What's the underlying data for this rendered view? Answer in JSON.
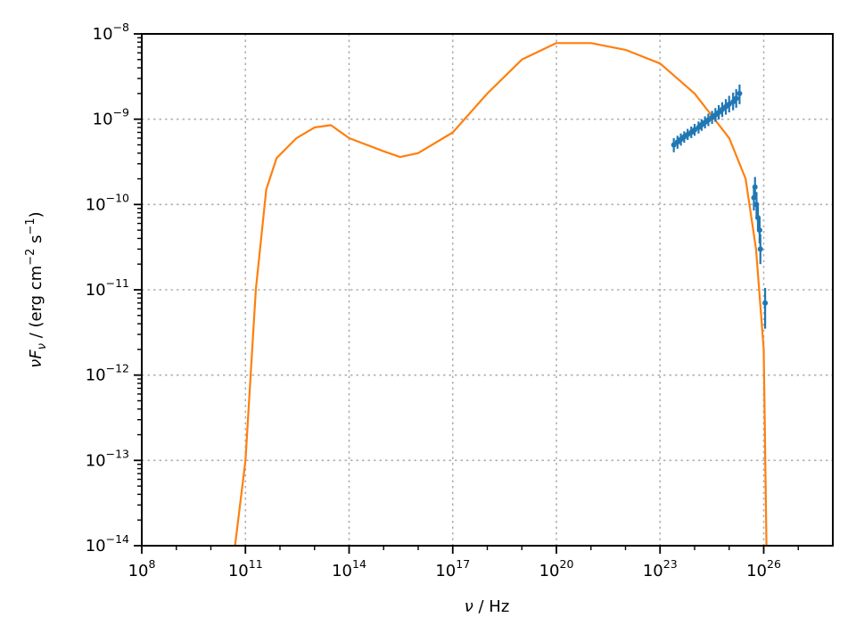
{
  "chart_data": {
    "type": "scatter",
    "title": "",
    "x_scale": "log",
    "y_scale": "log",
    "xlim": [
      100000000.0,
      1e+28
    ],
    "ylim": [
      1e-14,
      1e-08
    ],
    "grid": true,
    "x_ticks": [
      {
        "value": 100000000.0,
        "base": "10",
        "exp": "8"
      },
      {
        "value": 100000000000.0,
        "base": "10",
        "exp": "11"
      },
      {
        "value": 100000000000000.0,
        "base": "10",
        "exp": "14"
      },
      {
        "value": 1e+17,
        "base": "10",
        "exp": "17"
      },
      {
        "value": 1e+20,
        "base": "10",
        "exp": "20"
      },
      {
        "value": 1e+23,
        "base": "10",
        "exp": "23"
      },
      {
        "value": 1e+26,
        "base": "10",
        "exp": "26"
      }
    ],
    "y_ticks": [
      {
        "value": 1e-08,
        "base": "10",
        "exp": "−8"
      },
      {
        "value": 1e-09,
        "base": "10",
        "exp": "−9"
      },
      {
        "value": 1e-10,
        "base": "10",
        "exp": "−10"
      },
      {
        "value": 1e-11,
        "base": "10",
        "exp": "−11"
      },
      {
        "value": 1e-12,
        "base": "10",
        "exp": "−12"
      },
      {
        "value": 1e-13,
        "base": "10",
        "exp": "−13"
      },
      {
        "value": 1e-14,
        "base": "10",
        "exp": "−14"
      }
    ],
    "series": [
      {
        "type": "line",
        "color": "#ff7f0e",
        "points": [
          [
            50000000000.0,
            1e-14
          ],
          [
            100000000000.0,
            1e-13
          ],
          [
            200000000000.0,
            1e-11
          ],
          [
            400000000000.0,
            1.5e-10
          ],
          [
            800000000000.0,
            3.5e-10
          ],
          [
            3000000000000.0,
            6e-10
          ],
          [
            10000000000000.0,
            8e-10
          ],
          [
            30000000000000.0,
            8.5e-10
          ],
          [
            100000000000000.0,
            6e-10
          ],
          [
            1000000000000000.0,
            4.2e-10
          ],
          [
            3000000000000000.0,
            3.6e-10
          ],
          [
            1e+16,
            4e-10
          ],
          [
            1e+17,
            7e-10
          ],
          [
            1e+18,
            2e-09
          ],
          [
            1e+19,
            5e-09
          ],
          [
            1e+20,
            7.8e-09
          ],
          [
            1e+21,
            7.8e-09
          ],
          [
            1e+22,
            6.5e-09
          ],
          [
            1e+23,
            4.5e-09
          ],
          [
            1e+24,
            2e-09
          ],
          [
            1e+25,
            6e-10
          ],
          [
            3e+25,
            2e-10
          ],
          [
            6e+25,
            3e-11
          ],
          [
            1e+26,
            2e-12
          ],
          [
            1.2e+26,
            1e-14
          ]
        ]
      },
      {
        "type": "errorbar",
        "color": "#1f77b4",
        "points": [
          {
            "x": 2.5e+23,
            "y": 5e-10,
            "lo": 4.1e-10,
            "hi": 6e-10
          },
          {
            "x": 3.2e+23,
            "y": 5.4e-10,
            "lo": 4.5e-10,
            "hi": 6.4e-10
          },
          {
            "x": 4e+23,
            "y": 5.8e-10,
            "lo": 4.9e-10,
            "hi": 6.8e-10
          },
          {
            "x": 5e+23,
            "y": 6.2e-10,
            "lo": 5.3e-10,
            "hi": 7.2e-10
          },
          {
            "x": 6.3e+23,
            "y": 6.6e-10,
            "lo": 5.7e-10,
            "hi": 7.7e-10
          },
          {
            "x": 8e+23,
            "y": 7e-10,
            "lo": 6e-10,
            "hi": 8.2e-10
          },
          {
            "x": 1e+24,
            "y": 7.5e-10,
            "lo": 6.4e-10,
            "hi": 8.8e-10
          },
          {
            "x": 1.3e+24,
            "y": 8e-10,
            "lo": 6.8e-10,
            "hi": 9.4e-10
          },
          {
            "x": 1.6e+24,
            "y": 8.6e-10,
            "lo": 7.3e-10,
            "hi": 1e-09
          },
          {
            "x": 2e+24,
            "y": 9.2e-10,
            "lo": 7.8e-10,
            "hi": 1.08e-09
          },
          {
            "x": 2.5e+24,
            "y": 9.8e-10,
            "lo": 8.3e-10,
            "hi": 1.16e-09
          },
          {
            "x": 3.2e+24,
            "y": 1.05e-09,
            "lo": 8.8e-10,
            "hi": 1.25e-09
          },
          {
            "x": 4e+24,
            "y": 1.12e-09,
            "lo": 9.3e-10,
            "hi": 1.35e-09
          },
          {
            "x": 5e+24,
            "y": 1.2e-09,
            "lo": 9.9e-10,
            "hi": 1.46e-09
          },
          {
            "x": 6.3e+24,
            "y": 1.3e-09,
            "lo": 1.06e-09,
            "hi": 1.58e-09
          },
          {
            "x": 8e+24,
            "y": 1.4e-09,
            "lo": 1.13e-09,
            "hi": 1.72e-09
          },
          {
            "x": 1e+25,
            "y": 1.5e-09,
            "lo": 1.2e-09,
            "hi": 1.88e-09
          },
          {
            "x": 1.3e+25,
            "y": 1.6e-09,
            "lo": 1.27e-09,
            "hi": 2.05e-09
          },
          {
            "x": 1.6e+25,
            "y": 1.75e-09,
            "lo": 1.36e-09,
            "hi": 2.25e-09
          },
          {
            "x": 2e+25,
            "y": 2e-09,
            "lo": 1.5e-09,
            "hi": 2.55e-09
          },
          {
            "x": 5.2e+25,
            "y": 1.2e-10,
            "lo": 8.5e-11,
            "hi": 1.6e-10
          },
          {
            "x": 5.6e+25,
            "y": 1.6e-10,
            "lo": 1.2e-10,
            "hi": 2.1e-10
          },
          {
            "x": 6.2e+25,
            "y": 1e-10,
            "lo": 7e-11,
            "hi": 1.4e-10
          },
          {
            "x": 6.8e+25,
            "y": 7e-11,
            "lo": 5e-11,
            "hi": 9.5e-11
          },
          {
            "x": 7.6e+25,
            "y": 5e-11,
            "lo": 3.5e-11,
            "hi": 7e-11
          },
          {
            "x": 8e+25,
            "y": 3e-11,
            "lo": 2e-11,
            "hi": 4.5e-11
          },
          {
            "x": 1.1e+26,
            "y": 7e-12,
            "lo": 3.5e-12,
            "hi": 1.05e-11
          }
        ]
      }
    ]
  },
  "axes": {
    "xlabel": {
      "symbol": "ν",
      "unit": " / Hz"
    },
    "ylabel": {
      "p1": "ν",
      "p2": "F",
      "p3": "ν",
      "p4": " / (erg cm",
      "p5": "−2",
      "p6": " s",
      "p7": "−1",
      "p8": ")"
    }
  }
}
